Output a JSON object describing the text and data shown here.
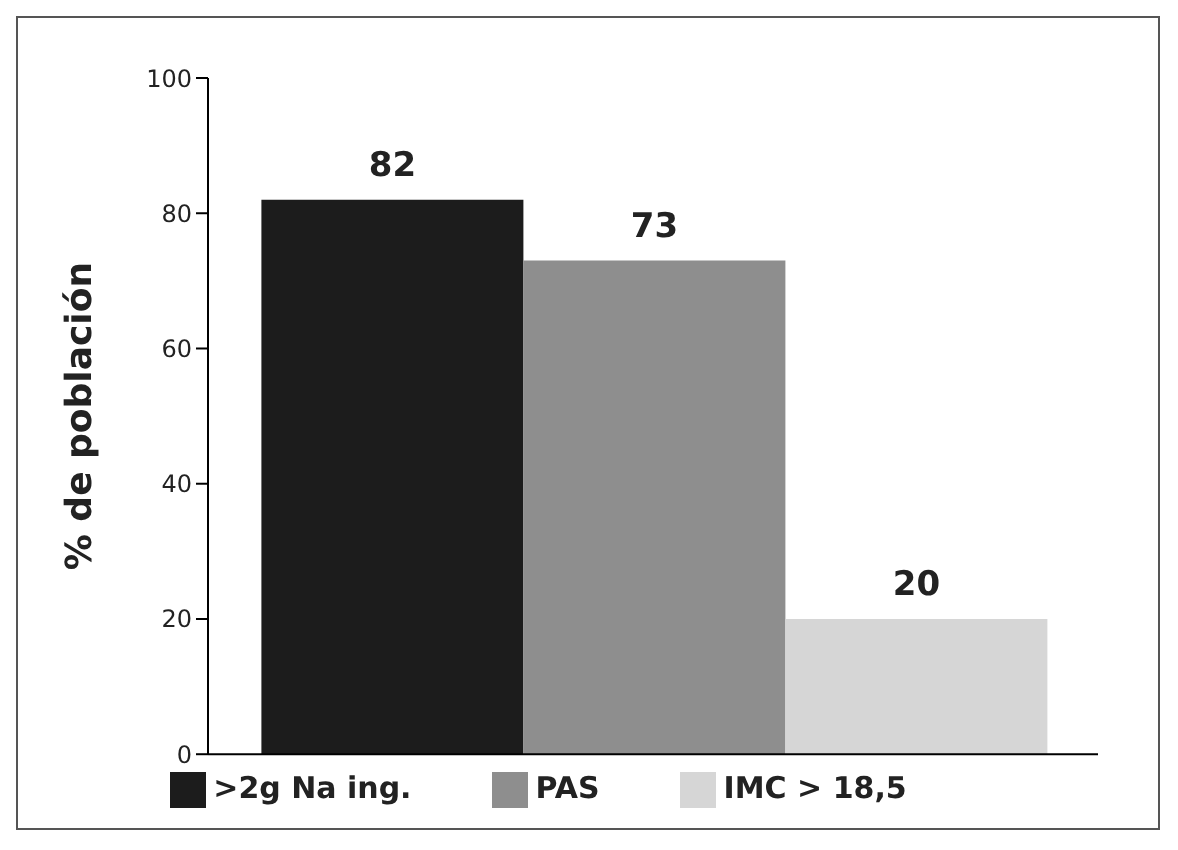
{
  "chart_data": {
    "type": "bar",
    "ylabel": "% de población",
    "categories": [
      null
    ],
    "series": [
      {
        "name": ">2g Na ing.",
        "color": "#1c1c1c",
        "values": [
          82
        ]
      },
      {
        "name": "PAS",
        "color": "#8e8e8e",
        "values": [
          73
        ]
      },
      {
        "name": "IMC > 18,5",
        "color": "#d6d6d6",
        "values": [
          20
        ]
      }
    ],
    "ylim": [
      0,
      100
    ],
    "yticks": [
      0,
      20,
      40,
      60,
      80,
      100
    ],
    "data_labels": true,
    "legend": "bottom",
    "tick_labels": "y",
    "grid": false
  }
}
